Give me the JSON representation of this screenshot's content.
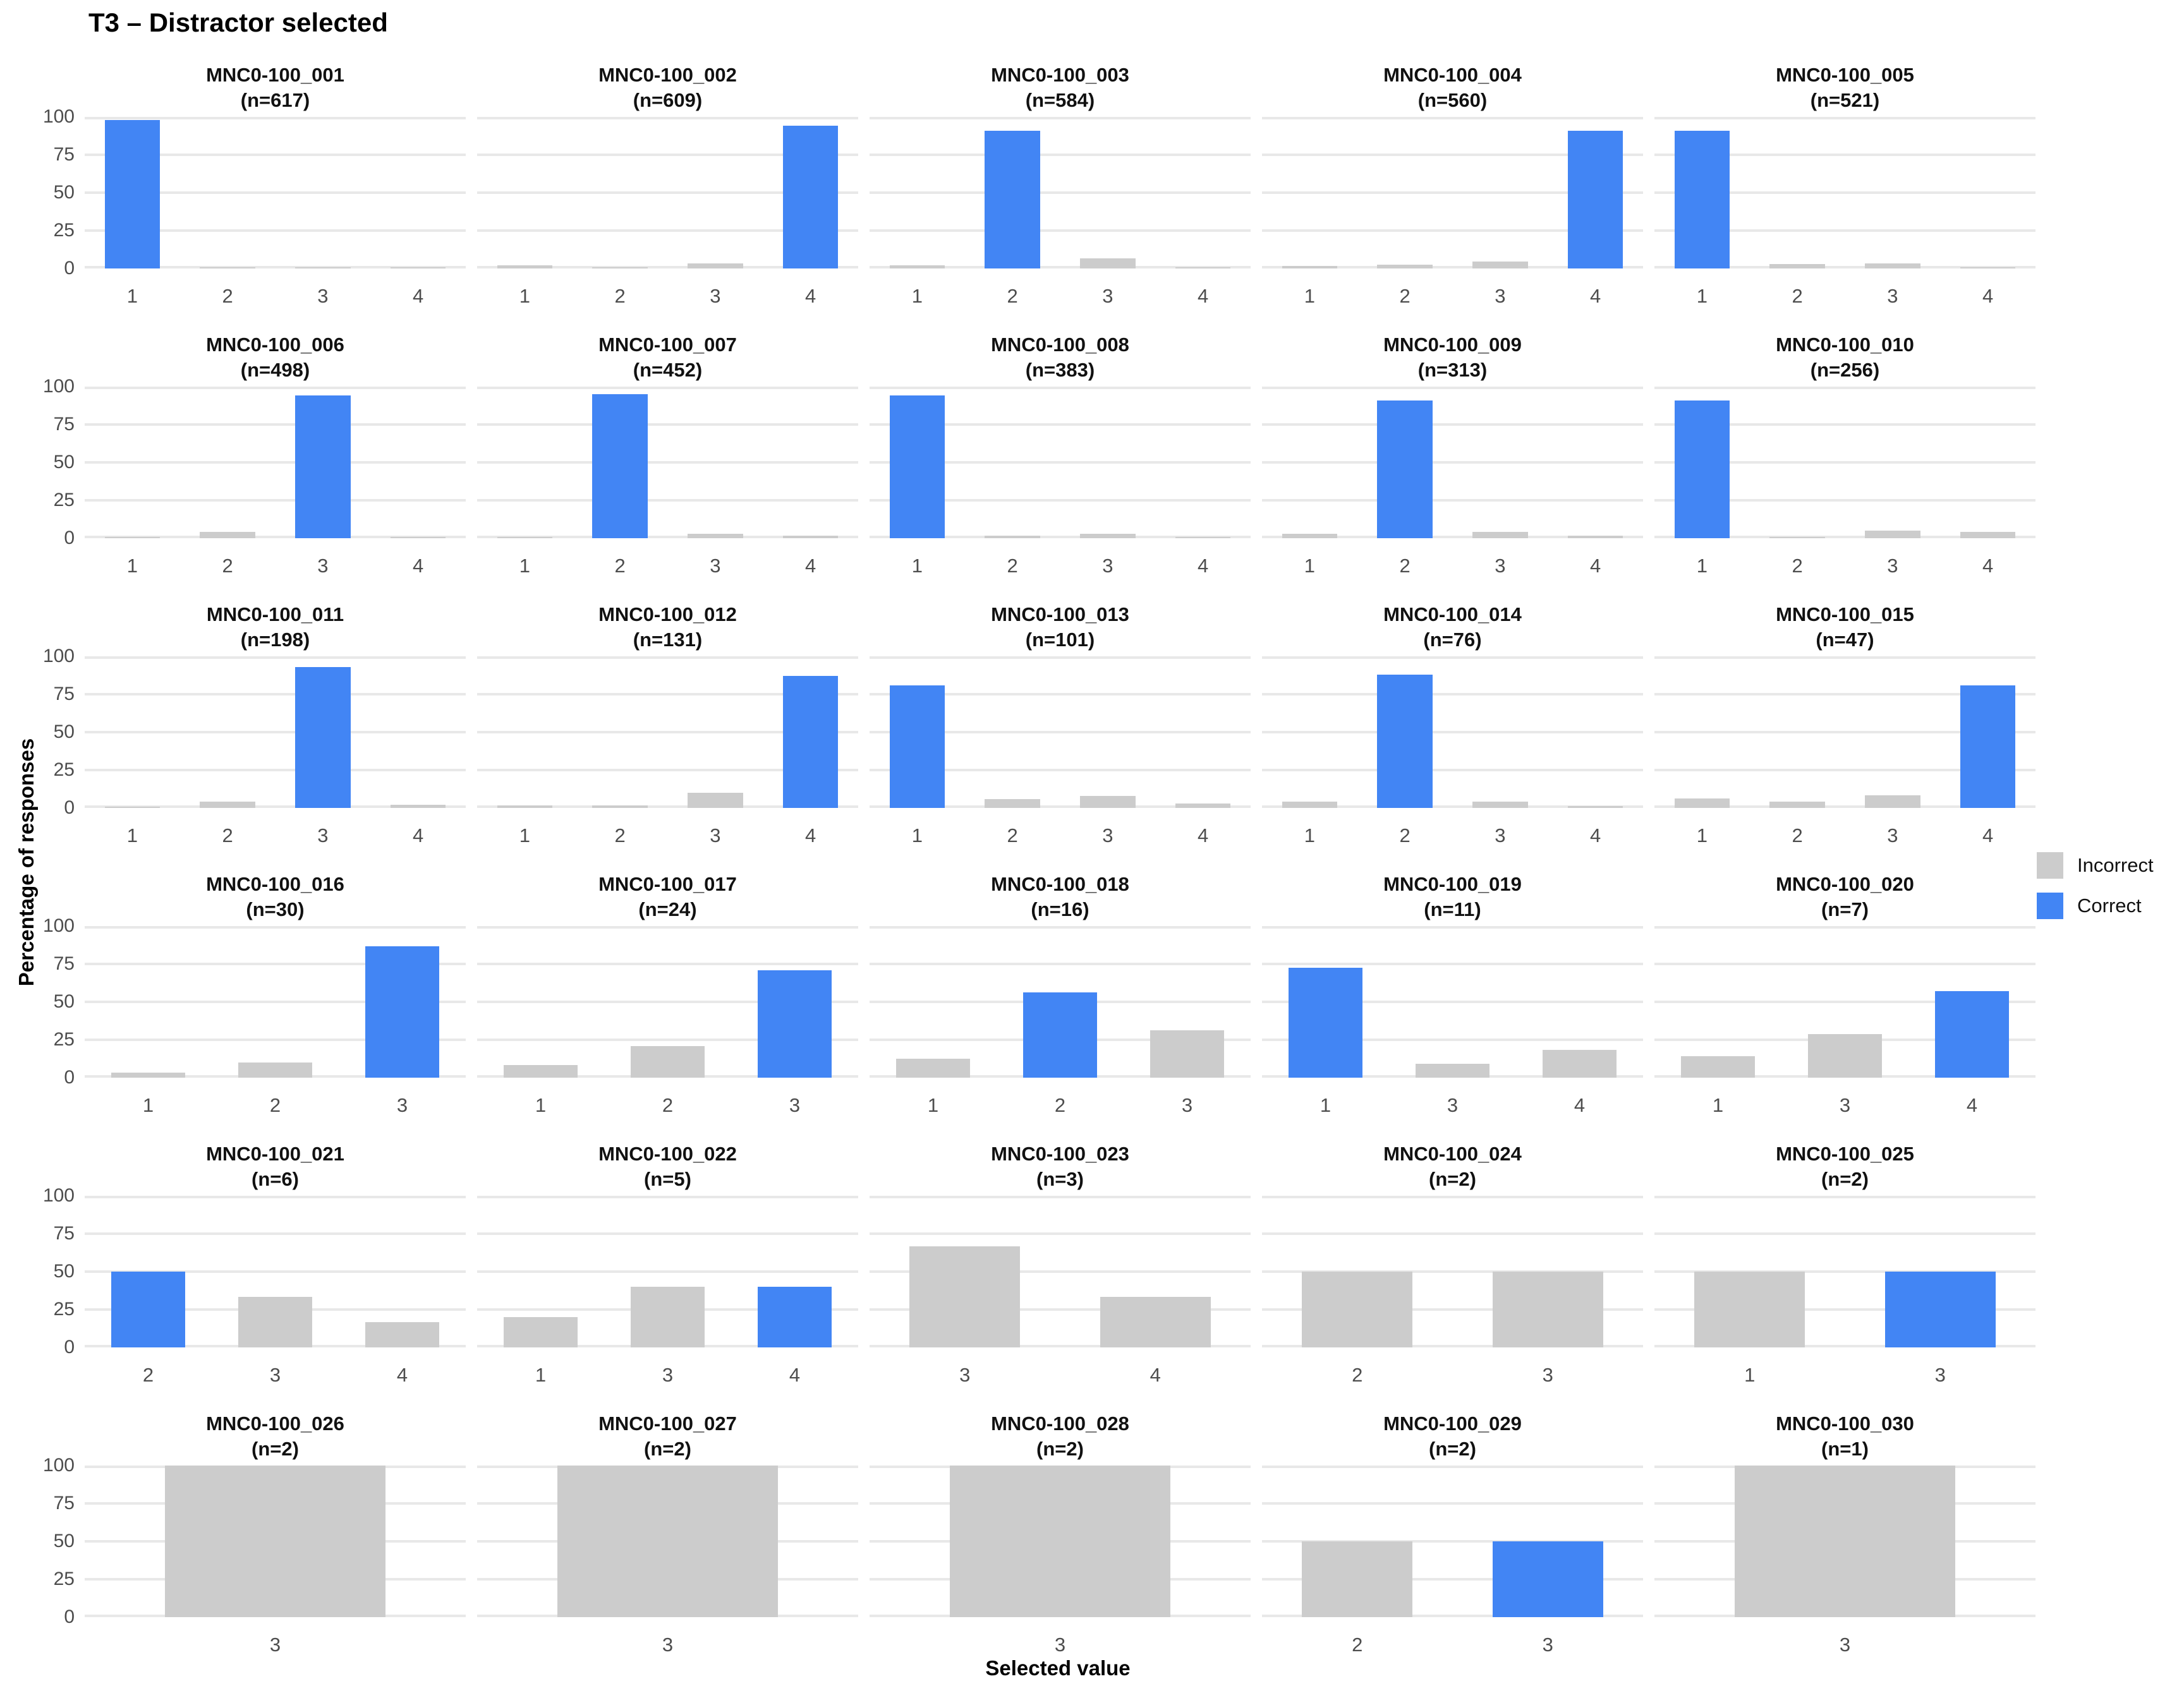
{
  "page": {
    "title": "T3 – Distractor selected"
  },
  "colors": {
    "correct": "#4285F4",
    "incorrect": "#CCCCCC",
    "gridline": "#E8E8E8",
    "tick_text": "#4D4D4D"
  },
  "chart_data": {
    "type": "bar",
    "title": "T3 – Distractor selected",
    "xlabel": "Selected value",
    "ylabel": "Percentage of responses",
    "ylim": [
      0,
      100
    ],
    "yticks": [
      100,
      75,
      50,
      25,
      0
    ],
    "grid": "horizontal-only",
    "facet_columns": 5,
    "legend_position": "right-middle",
    "legend": [
      {
        "label": "Incorrect",
        "color": "#CCCCCC"
      },
      {
        "label": "Correct",
        "color": "#4285F4"
      }
    ],
    "facets": [
      {
        "title": "MNC0-100_001",
        "subtitle": "(n=617)",
        "n": 617,
        "bars": [
          {
            "x": "1",
            "pct": 98,
            "status": "correct"
          },
          {
            "x": "2",
            "pct": 0.5,
            "status": "incorrect"
          },
          {
            "x": "3",
            "pct": 1,
            "status": "incorrect"
          },
          {
            "x": "4",
            "pct": 0.5,
            "status": "incorrect"
          }
        ]
      },
      {
        "title": "MNC0-100_002",
        "subtitle": "(n=609)",
        "n": 609,
        "bars": [
          {
            "x": "1",
            "pct": 2,
            "status": "incorrect"
          },
          {
            "x": "2",
            "pct": 1,
            "status": "incorrect"
          },
          {
            "x": "3",
            "pct": 3.5,
            "status": "incorrect"
          },
          {
            "x": "4",
            "pct": 94,
            "status": "correct"
          }
        ]
      },
      {
        "title": "MNC0-100_003",
        "subtitle": "(n=584)",
        "n": 584,
        "bars": [
          {
            "x": "1",
            "pct": 2,
            "status": "incorrect"
          },
          {
            "x": "2",
            "pct": 91,
            "status": "correct"
          },
          {
            "x": "3",
            "pct": 6.5,
            "status": "incorrect"
          },
          {
            "x": "4",
            "pct": 1,
            "status": "incorrect"
          }
        ]
      },
      {
        "title": "MNC0-100_004",
        "subtitle": "(n=560)",
        "n": 560,
        "bars": [
          {
            "x": "1",
            "pct": 1.5,
            "status": "incorrect"
          },
          {
            "x": "2",
            "pct": 2.5,
            "status": "incorrect"
          },
          {
            "x": "3",
            "pct": 4.5,
            "status": "incorrect"
          },
          {
            "x": "4",
            "pct": 91,
            "status": "correct"
          }
        ]
      },
      {
        "title": "MNC0-100_005",
        "subtitle": "(n=521)",
        "n": 521,
        "bars": [
          {
            "x": "1",
            "pct": 91,
            "status": "correct"
          },
          {
            "x": "2",
            "pct": 3,
            "status": "incorrect"
          },
          {
            "x": "3",
            "pct": 3.5,
            "status": "incorrect"
          },
          {
            "x": "4",
            "pct": 1,
            "status": "incorrect"
          }
        ]
      },
      {
        "title": "MNC0-100_006",
        "subtitle": "(n=498)",
        "n": 498,
        "bars": [
          {
            "x": "1",
            "pct": 1,
            "status": "incorrect"
          },
          {
            "x": "2",
            "pct": 4,
            "status": "incorrect"
          },
          {
            "x": "3",
            "pct": 94,
            "status": "correct"
          },
          {
            "x": "4",
            "pct": 0.5,
            "status": "incorrect"
          }
        ]
      },
      {
        "title": "MNC0-100_007",
        "subtitle": "(n=452)",
        "n": 452,
        "bars": [
          {
            "x": "1",
            "pct": 1,
            "status": "incorrect"
          },
          {
            "x": "2",
            "pct": 95,
            "status": "correct"
          },
          {
            "x": "3",
            "pct": 3,
            "status": "incorrect"
          },
          {
            "x": "4",
            "pct": 1.5,
            "status": "incorrect"
          }
        ]
      },
      {
        "title": "MNC0-100_008",
        "subtitle": "(n=383)",
        "n": 383,
        "bars": [
          {
            "x": "1",
            "pct": 94,
            "status": "correct"
          },
          {
            "x": "2",
            "pct": 1.5,
            "status": "incorrect"
          },
          {
            "x": "3",
            "pct": 3,
            "status": "incorrect"
          },
          {
            "x": "4",
            "pct": 1,
            "status": "incorrect"
          }
        ]
      },
      {
        "title": "MNC0-100_009",
        "subtitle": "(n=313)",
        "n": 313,
        "bars": [
          {
            "x": "1",
            "pct": 3,
            "status": "incorrect"
          },
          {
            "x": "2",
            "pct": 91,
            "status": "correct"
          },
          {
            "x": "3",
            "pct": 4,
            "status": "incorrect"
          },
          {
            "x": "4",
            "pct": 1.5,
            "status": "incorrect"
          }
        ]
      },
      {
        "title": "MNC0-100_010",
        "subtitle": "(n=256)",
        "n": 256,
        "bars": [
          {
            "x": "1",
            "pct": 91,
            "status": "correct"
          },
          {
            "x": "2",
            "pct": 1,
            "status": "incorrect"
          },
          {
            "x": "3",
            "pct": 5,
            "status": "incorrect"
          },
          {
            "x": "4",
            "pct": 4,
            "status": "incorrect"
          }
        ]
      },
      {
        "title": "MNC0-100_011",
        "subtitle": "(n=198)",
        "n": 198,
        "bars": [
          {
            "x": "1",
            "pct": 1,
            "status": "incorrect"
          },
          {
            "x": "2",
            "pct": 4,
            "status": "incorrect"
          },
          {
            "x": "3",
            "pct": 93,
            "status": "correct"
          },
          {
            "x": "4",
            "pct": 2,
            "status": "incorrect"
          }
        ]
      },
      {
        "title": "MNC0-100_012",
        "subtitle": "(n=131)",
        "n": 131,
        "bars": [
          {
            "x": "1",
            "pct": 1.5,
            "status": "incorrect"
          },
          {
            "x": "2",
            "pct": 1.5,
            "status": "incorrect"
          },
          {
            "x": "3",
            "pct": 10,
            "status": "incorrect"
          },
          {
            "x": "4",
            "pct": 87,
            "status": "correct"
          }
        ]
      },
      {
        "title": "MNC0-100_013",
        "subtitle": "(n=101)",
        "n": 101,
        "bars": [
          {
            "x": "1",
            "pct": 81,
            "status": "correct"
          },
          {
            "x": "2",
            "pct": 6,
            "status": "incorrect"
          },
          {
            "x": "3",
            "pct": 8,
            "status": "incorrect"
          },
          {
            "x": "4",
            "pct": 3,
            "status": "incorrect"
          }
        ]
      },
      {
        "title": "MNC0-100_014",
        "subtitle": "(n=76)",
        "n": 76,
        "bars": [
          {
            "x": "1",
            "pct": 4,
            "status": "incorrect"
          },
          {
            "x": "2",
            "pct": 88,
            "status": "correct"
          },
          {
            "x": "3",
            "pct": 4,
            "status": "incorrect"
          },
          {
            "x": "4",
            "pct": 1.3,
            "status": "incorrect"
          }
        ]
      },
      {
        "title": "MNC0-100_015",
        "subtitle": "(n=47)",
        "n": 47,
        "bars": [
          {
            "x": "1",
            "pct": 6.4,
            "status": "incorrect"
          },
          {
            "x": "2",
            "pct": 4.3,
            "status": "incorrect"
          },
          {
            "x": "3",
            "pct": 8.5,
            "status": "incorrect"
          },
          {
            "x": "4",
            "pct": 80.9,
            "status": "correct"
          }
        ]
      },
      {
        "title": "MNC0-100_016",
        "subtitle": "(n=30)",
        "n": 30,
        "bars": [
          {
            "x": "1",
            "pct": 3.3,
            "status": "incorrect"
          },
          {
            "x": "2",
            "pct": 10,
            "status": "incorrect"
          },
          {
            "x": "3",
            "pct": 86.7,
            "status": "correct"
          }
        ]
      },
      {
        "title": "MNC0-100_017",
        "subtitle": "(n=24)",
        "n": 24,
        "bars": [
          {
            "x": "1",
            "pct": 8.3,
            "status": "incorrect"
          },
          {
            "x": "2",
            "pct": 20.8,
            "status": "incorrect"
          },
          {
            "x": "3",
            "pct": 70.8,
            "status": "correct"
          }
        ]
      },
      {
        "title": "MNC0-100_018",
        "subtitle": "(n=16)",
        "n": 16,
        "bars": [
          {
            "x": "1",
            "pct": 12.5,
            "status": "incorrect"
          },
          {
            "x": "2",
            "pct": 56.3,
            "status": "correct"
          },
          {
            "x": "3",
            "pct": 31.3,
            "status": "incorrect"
          }
        ]
      },
      {
        "title": "MNC0-100_019",
        "subtitle": "(n=11)",
        "n": 11,
        "bars": [
          {
            "x": "1",
            "pct": 72.7,
            "status": "correct"
          },
          {
            "x": "3",
            "pct": 9.1,
            "status": "incorrect"
          },
          {
            "x": "4",
            "pct": 18.2,
            "status": "incorrect"
          }
        ]
      },
      {
        "title": "MNC0-100_020",
        "subtitle": "(n=7)",
        "n": 7,
        "bars": [
          {
            "x": "1",
            "pct": 14.3,
            "status": "incorrect"
          },
          {
            "x": "3",
            "pct": 28.6,
            "status": "incorrect"
          },
          {
            "x": "4",
            "pct": 57.1,
            "status": "correct"
          }
        ]
      },
      {
        "title": "MNC0-100_021",
        "subtitle": "(n=6)",
        "n": 6,
        "bars": [
          {
            "x": "2",
            "pct": 50,
            "status": "correct"
          },
          {
            "x": "3",
            "pct": 33.3,
            "status": "incorrect"
          },
          {
            "x": "4",
            "pct": 16.7,
            "status": "incorrect"
          }
        ]
      },
      {
        "title": "MNC0-100_022",
        "subtitle": "(n=5)",
        "n": 5,
        "bars": [
          {
            "x": "1",
            "pct": 20,
            "status": "incorrect"
          },
          {
            "x": "3",
            "pct": 40,
            "status": "incorrect"
          },
          {
            "x": "4",
            "pct": 40,
            "status": "correct"
          }
        ]
      },
      {
        "title": "MNC0-100_023",
        "subtitle": "(n=3)",
        "n": 3,
        "bars": [
          {
            "x": "3",
            "pct": 66.7,
            "status": "incorrect"
          },
          {
            "x": "4",
            "pct": 33.3,
            "status": "incorrect"
          }
        ]
      },
      {
        "title": "MNC0-100_024",
        "subtitle": "(n=2)",
        "n": 2,
        "bars": [
          {
            "x": "2",
            "pct": 50,
            "status": "incorrect"
          },
          {
            "x": "3",
            "pct": 50,
            "status": "incorrect"
          }
        ]
      },
      {
        "title": "MNC0-100_025",
        "subtitle": "(n=2)",
        "n": 2,
        "bars": [
          {
            "x": "1",
            "pct": 50,
            "status": "incorrect"
          },
          {
            "x": "3",
            "pct": 50,
            "status": "correct"
          }
        ]
      },
      {
        "title": "MNC0-100_026",
        "subtitle": "(n=2)",
        "n": 2,
        "bars": [
          {
            "x": "3",
            "pct": 100,
            "status": "incorrect"
          }
        ]
      },
      {
        "title": "MNC0-100_027",
        "subtitle": "(n=2)",
        "n": 2,
        "bars": [
          {
            "x": "3",
            "pct": 100,
            "status": "incorrect"
          }
        ]
      },
      {
        "title": "MNC0-100_028",
        "subtitle": "(n=2)",
        "n": 2,
        "bars": [
          {
            "x": "3",
            "pct": 100,
            "status": "incorrect"
          }
        ]
      },
      {
        "title": "MNC0-100_029",
        "subtitle": "(n=2)",
        "n": 2,
        "bars": [
          {
            "x": "2",
            "pct": 50,
            "status": "incorrect"
          },
          {
            "x": "3",
            "pct": 50,
            "status": "correct"
          }
        ]
      },
      {
        "title": "MNC0-100_030",
        "subtitle": "(n=1)",
        "n": 1,
        "bars": [
          {
            "x": "3",
            "pct": 100,
            "status": "incorrect"
          }
        ]
      }
    ]
  }
}
